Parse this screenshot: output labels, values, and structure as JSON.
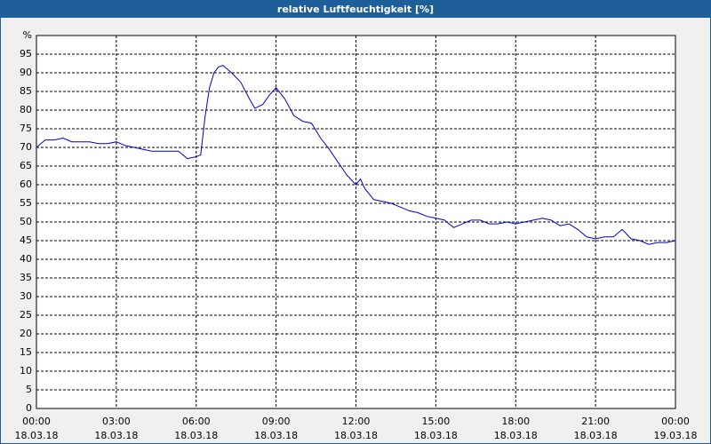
{
  "chart_data": {
    "type": "line",
    "title": "relative Luftfeuchtigkeit [%]",
    "x": [
      0,
      0.33,
      0.67,
      1.0,
      1.33,
      1.67,
      2.0,
      2.33,
      2.67,
      3.0,
      3.33,
      3.67,
      4.0,
      4.33,
      4.67,
      5.0,
      5.33,
      5.67,
      6.0,
      6.17,
      6.33,
      6.5,
      6.67,
      6.83,
      7.0,
      7.33,
      7.67,
      8.0,
      8.2,
      8.5,
      8.75,
      9.0,
      9.33,
      9.67,
      10.0,
      10.33,
      10.67,
      11.0,
      11.33,
      11.67,
      12.0,
      12.17,
      12.33,
      12.67,
      13.0,
      13.33,
      13.67,
      14.0,
      14.33,
      14.67,
      15.0,
      15.33,
      15.67,
      16.0,
      16.33,
      16.67,
      17.0,
      17.33,
      17.67,
      18.0,
      18.33,
      18.67,
      19.0,
      19.33,
      19.67,
      20.0,
      20.33,
      20.67,
      21.0,
      21.33,
      21.67,
      22.0,
      22.33,
      22.67,
      23.0,
      23.33,
      23.67,
      24.0
    ],
    "series": [
      {
        "name": "relative Luftfeuchtigkeit",
        "color": "#0000cc",
        "values": [
          70,
          72,
          72,
          72.5,
          71.5,
          71.5,
          71.5,
          71,
          71,
          71.5,
          70.5,
          70,
          69.5,
          69,
          69,
          69,
          69,
          67,
          67.5,
          68,
          78,
          86,
          90,
          91.5,
          92,
          90,
          87.5,
          83,
          80.5,
          81.5,
          84,
          86,
          83,
          78.5,
          77,
          76.5,
          72.5,
          69.5,
          66,
          62.5,
          60,
          61.5,
          59,
          56,
          55.5,
          55,
          54,
          53,
          52.5,
          51.5,
          51,
          50.5,
          48.5,
          49.5,
          50.5,
          50.5,
          49.5,
          49.5,
          50,
          49.5,
          50,
          50.5,
          51,
          50.5,
          49,
          49.5,
          48,
          46,
          45.5,
          46,
          46,
          48,
          45.5,
          45,
          44,
          44.5,
          44.5,
          45
        ]
      }
    ],
    "xlim": [
      0,
      24
    ],
    "xticks": [
      {
        "value": 0,
        "label": "00:00",
        "date": "18.03.18"
      },
      {
        "value": 3,
        "label": "03:00",
        "date": "18.03.18"
      },
      {
        "value": 6,
        "label": "06:00",
        "date": "18.03.18"
      },
      {
        "value": 9,
        "label": "09:00",
        "date": "18.03.18"
      },
      {
        "value": 12,
        "label": "12:00",
        "date": "18.03.18"
      },
      {
        "value": 15,
        "label": "15:00",
        "date": "18.03.18"
      },
      {
        "value": 18,
        "label": "18:00",
        "date": "18.03.18"
      },
      {
        "value": 21,
        "label": "21:00",
        "date": "18.03.18"
      },
      {
        "value": 24,
        "label": "00:00",
        "date": "19.03.18"
      }
    ],
    "ylim": [
      0,
      100
    ],
    "yticks": [
      0,
      5,
      10,
      15,
      20,
      25,
      30,
      35,
      40,
      45,
      50,
      55,
      60,
      65,
      70,
      75,
      80,
      85,
      90,
      95,
      {
        "value": 100,
        "label": "%"
      }
    ],
    "grid": true
  }
}
